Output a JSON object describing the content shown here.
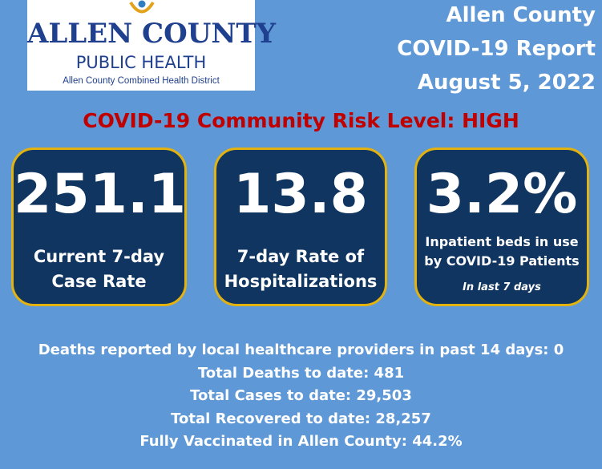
{
  "logo": {
    "name": "ALLEN COUNTY",
    "subtitle": "PUBLIC HEALTH",
    "tagline": "Allen County Combined Health District"
  },
  "header": {
    "line1": "Allen County",
    "line2": "COVID-19 Report",
    "line3": "August 5, 2022"
  },
  "risk_level": "COVID-19 Community Risk Level: HIGH",
  "cards": [
    {
      "value": "251.1",
      "label_line1": "Current 7-day",
      "label_line2": "Case Rate"
    },
    {
      "value": "13.8",
      "label_line1": "7-day Rate of",
      "label_line2": "Hospitalizations"
    },
    {
      "value": "3.2%",
      "label_line1": "Inpatient beds in use",
      "label_line2": "by COVID-19 Patients",
      "note": "In last  7 days"
    }
  ],
  "stats": [
    "Deaths reported by local healthcare providers in past 14 days: 0",
    "Total Deaths to date: 481",
    "Total Cases to date: 29,503",
    "Total Recovered to date: 28,257",
    "Fully Vaccinated in Allen County: 44.2%"
  ],
  "colors": {
    "background": "#5f98d6",
    "card_fill": "#0f3560",
    "card_border": "#e3b20f",
    "risk_text": "#c00000",
    "logo_text": "#1f3f8f"
  }
}
